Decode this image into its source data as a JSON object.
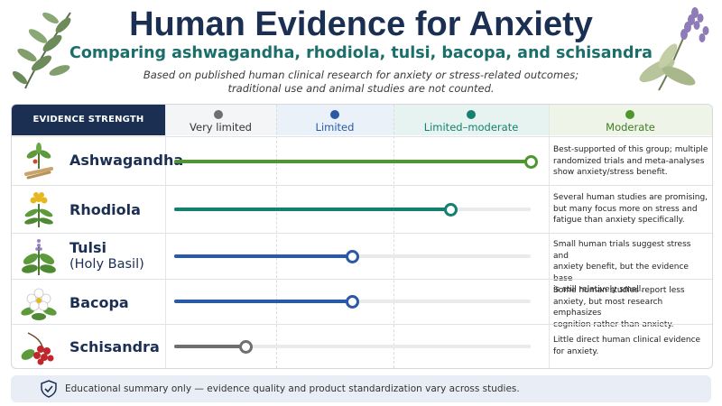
{
  "header": {
    "title": "Human Evidence for Anxiety",
    "subtitle": "Comparing ashwagandha, rhodiola, tulsi, bacopa, and schisandra",
    "note_line1": "Based on published human clinical research for anxiety or stress-related outcomes;",
    "note_line2": "traditional use and animal studies are not counted."
  },
  "colors": {
    "navy": "#1b2f52",
    "very_limited": "#6f6f6f",
    "limited": "#2a5aa5",
    "limited_moderate": "#14806f",
    "moderate": "#4e962d"
  },
  "chart_data": {
    "type": "bar",
    "orientation": "horizontal",
    "axis_label": "EVIDENCE STRENGTH",
    "levels": [
      "Very limited",
      "Limited",
      "Limited–moderate",
      "Moderate"
    ],
    "categories": [
      "Ashwagandha",
      "Rhodiola",
      "Tulsi (Holy Basil)",
      "Bacopa",
      "Schisandra"
    ],
    "values": [
      4.0,
      3.1,
      2.0,
      2.0,
      0.8
    ],
    "value_scale": "0 = none, 1 = Very limited, 2 = Limited, 3 = Limited–moderate, 4 = Moderate",
    "bar_colors": [
      "#4e962d",
      "#14806f",
      "#2a5aa5",
      "#2a5aa5",
      "#6f6f6f"
    ],
    "descriptions": [
      "Best-supported of this group; multiple randomized trials and meta-analyses show anxiety/stress benefit.",
      "Several human studies are promising, but many focus more on stress and fatigue than anxiety specifically.",
      "Small human trials suggest stress and anxiety benefit, but the evidence base is still relatively small.",
      "Some human studies report less anxiety, but most research emphasizes cognition rather than anxiety.",
      "Little direct human clinical evidence for anxiety."
    ]
  },
  "rows": [
    {
      "name_line1": "Ashwagandha",
      "name_line2": "",
      "desc_lines": [
        "Best-supported of this group; multiple",
        "randomized trials and meta-analyses",
        "show anxiety/stress benefit."
      ],
      "icon": "ashwagandha-plant-icon"
    },
    {
      "name_line1": "Rhodiola",
      "name_line2": "",
      "desc_lines": [
        "Several human studies are promising,",
        "but many focus more on stress and",
        "fatigue than anxiety specifically."
      ],
      "icon": "rhodiola-flower-icon"
    },
    {
      "name_line1": "Tulsi",
      "name_line2": "(Holy Basil)",
      "desc_lines": [
        "Small human trials suggest stress and",
        "anxiety benefit, but the evidence base",
        "is still relatively small."
      ],
      "icon": "tulsi-leaf-icon"
    },
    {
      "name_line1": "Bacopa",
      "name_line2": "",
      "desc_lines": [
        "Some human studies report less",
        "anxiety, but most research emphasizes",
        "cognition rather than anxiety."
      ],
      "icon": "bacopa-flower-icon"
    },
    {
      "name_line1": "Schisandra",
      "name_line2": "",
      "desc_lines": [
        "Little direct human clinical evidence",
        "for anxiety."
      ],
      "icon": "schisandra-berry-icon"
    }
  ],
  "footer": {
    "text": "Educational summary only — evidence quality and product standardization vary across studies.",
    "icon": "shield-check-icon"
  }
}
